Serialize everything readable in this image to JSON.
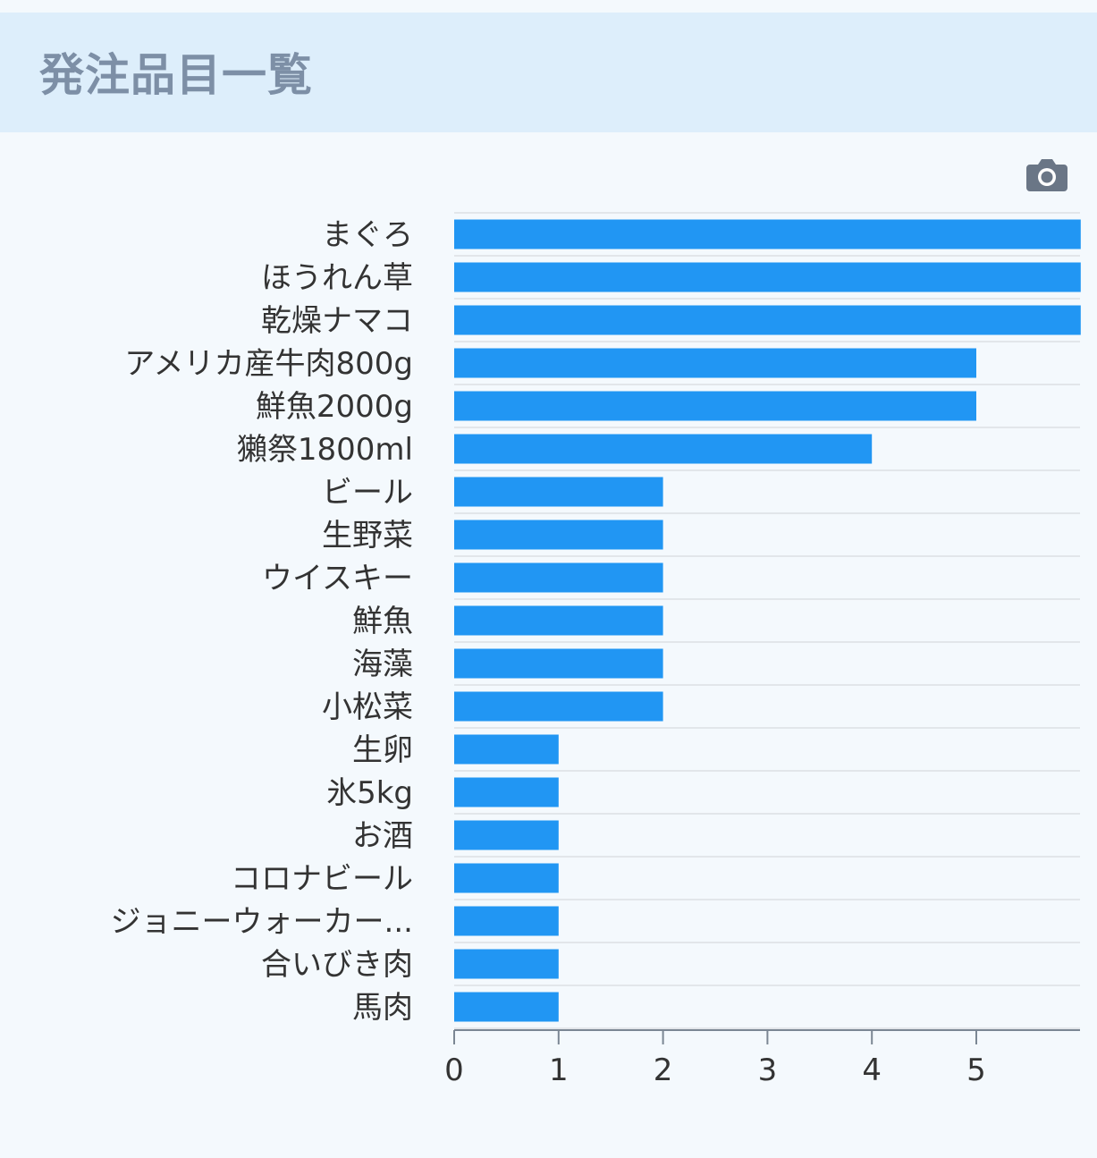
{
  "header": {
    "title": "発注品目一覧"
  },
  "toolbar": {
    "icon": "camera-icon"
  },
  "colors": {
    "bar": "#2196f3",
    "header_bg": "#ddeefb",
    "page_bg": "#f4f9fd",
    "title": "#7d8fa6"
  },
  "chart_data": {
    "type": "bar",
    "orientation": "horizontal",
    "categories": [
      "まぐろ",
      "ほうれん草",
      "乾燥ナマコ",
      "アメリカ産牛肉800g",
      "鮮魚2000g",
      "獺祭1800ml",
      "ビール",
      "生野菜",
      "ウイスキー",
      "鮮魚",
      "海藻",
      "小松菜",
      "生卵",
      "氷5kg",
      "お酒",
      "コロナビール",
      "ジョニーウォーカー...",
      "合いびき肉",
      "馬肉"
    ],
    "values": [
      6,
      6,
      6,
      5,
      5,
      4,
      2,
      2,
      2,
      2,
      2,
      2,
      1,
      1,
      1,
      1,
      1,
      1,
      1
    ],
    "xlim": [
      0,
      6
    ],
    "xticks": [
      "0",
      "1",
      "2",
      "3",
      "4",
      "5"
    ],
    "title": "",
    "xlabel": "",
    "ylabel": "",
    "grid": true,
    "legend": "none"
  }
}
